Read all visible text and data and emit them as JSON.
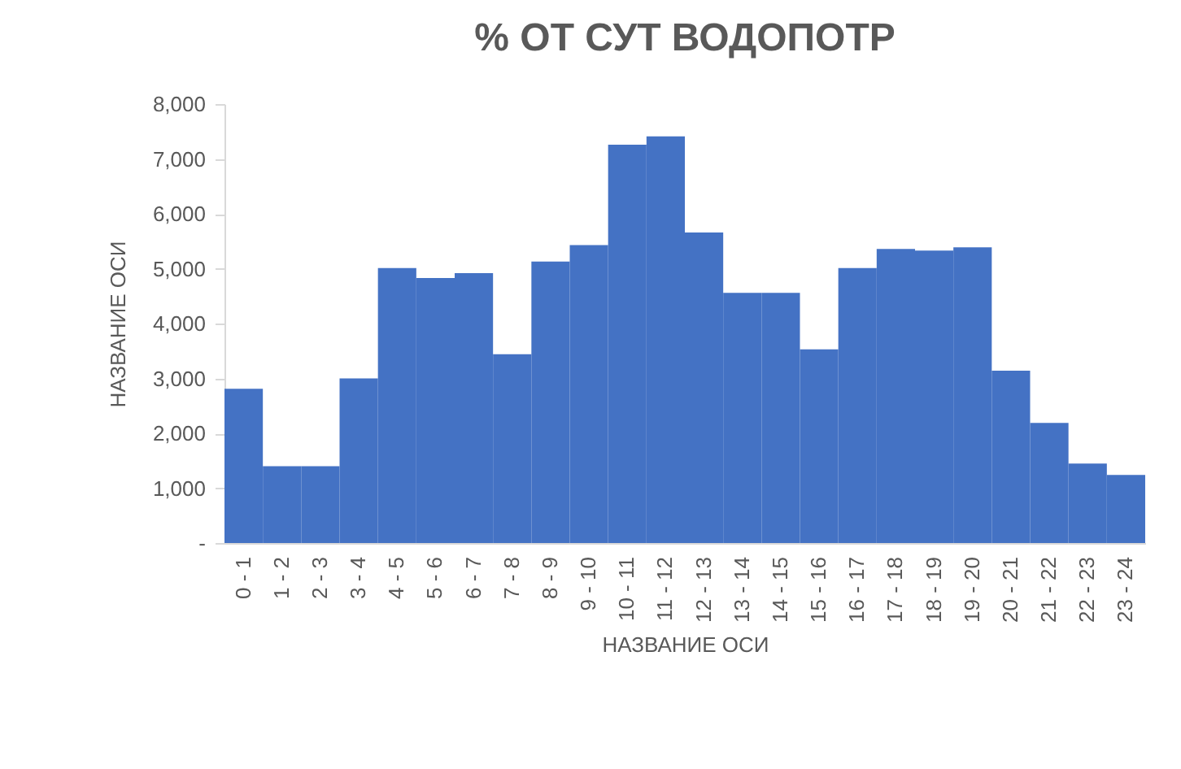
{
  "chart_data": {
    "type": "bar",
    "title": "% ОТ СУТ ВОДОПОТР",
    "xlabel": "НАЗВАНИЕ ОСИ",
    "ylabel": "НАЗВАНИЕ ОСИ",
    "categories": [
      "0 - 1",
      "1 - 2",
      "2 - 3",
      "3 - 4",
      "4 - 5",
      "5 - 6",
      "6 - 7",
      "7 - 8",
      "8 - 9",
      "9 - 10",
      "10 - 11",
      "11 - 12",
      "12 - 13",
      "13 - 14",
      "14 - 15",
      "15 - 16",
      "16 - 17",
      "17 - 18",
      "18 - 19",
      "19 - 20",
      "20 - 21",
      "21 - 22",
      "22 - 23",
      "23 - 24"
    ],
    "values": [
      2810,
      1400,
      1400,
      3000,
      5010,
      4830,
      4920,
      3440,
      5130,
      5430,
      7260,
      7410,
      5660,
      4560,
      4560,
      3530,
      5010,
      5360,
      5330,
      5390,
      3140,
      2190,
      1450,
      1240
    ],
    "color": "#4472c4",
    "ylim": [
      0,
      8000
    ],
    "yticks": [
      {
        "value": 0,
        "label": "-"
      },
      {
        "value": 1000,
        "label": "1,000"
      },
      {
        "value": 2000,
        "label": "2,000"
      },
      {
        "value": 3000,
        "label": "3,000"
      },
      {
        "value": 4000,
        "label": "4,000"
      },
      {
        "value": 5000,
        "label": "5,000"
      },
      {
        "value": 6000,
        "label": "6,000"
      },
      {
        "value": 7000,
        "label": "7,000"
      },
      {
        "value": 8000,
        "label": "8,000"
      }
    ],
    "grid": false
  }
}
